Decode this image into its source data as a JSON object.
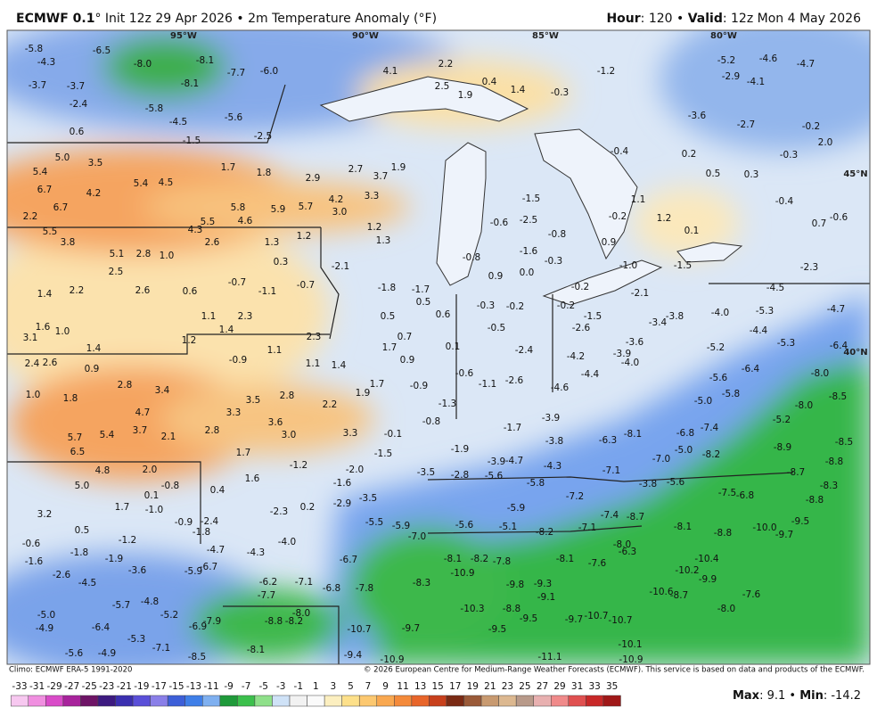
{
  "header": {
    "model": "ECMWF 0.1",
    "title": "° Init 12z 29 Apr 2026 • 2m Temperature Anomaly (°F)",
    "hour_key": "Hour",
    "hour_value": ": 120 • ",
    "valid_key": "Valid",
    "valid_value": ": 12z Mon 4 May 2026"
  },
  "map": {
    "graticule": [
      "95°W",
      "90°W",
      "85°W",
      "80°W",
      "45°N",
      "40°N"
    ],
    "values": [
      "-5.8",
      "-4.3",
      "-3.7",
      "-3.7",
      "-2.4",
      "0.6",
      "-6.5",
      "-8.0",
      "-8.1",
      "-8.1",
      "-7.7",
      "-6.0",
      "-5.8",
      "-4.5",
      "-5.6",
      "-2.5",
      "-1.5",
      "5.0",
      "3.5",
      "5.4",
      "6.7",
      "4.2",
      "6.7",
      "5.4",
      "4.5",
      "1.7",
      "1.8",
      "2.9",
      "2.7",
      "3.7",
      "1.9",
      "5.8",
      "5.9",
      "5.7",
      "4.2",
      "3.0",
      "3.3",
      "4.6",
      "5.5",
      "4.3",
      "2.6",
      "1.3",
      "1.2",
      "1.2",
      "1.3",
      "2.2",
      "5.5",
      "3.8",
      "5.1",
      "2.8",
      "1.0",
      "2.5",
      "0.3",
      "2.2",
      "1.4",
      "2.6",
      "0.6",
      "-0.7",
      "-1.1",
      "-0.7",
      "-2.1",
      "4.1",
      "2.2",
      "2.5",
      "1.9",
      "0.4",
      "1.4",
      "-0.3",
      "-1.2",
      "-5.2",
      "-4.6",
      "-4.7",
      "-2.9",
      "-4.1",
      "-3.6",
      "-2.7",
      "-0.2",
      "2.0",
      "-0.3",
      "0.5",
      "0.3",
      "0.2",
      "-0.4",
      "1.1",
      "1.2",
      "0.1",
      "-1.5",
      "-0.4",
      "0.7",
      "-0.6",
      "-2.3",
      "-4.5",
      "-4.0",
      "-5.3",
      "-4.7",
      "-4.4",
      "-5.3",
      "-6.4",
      "-5.2",
      "-3.4",
      "-3.8",
      "-3.6",
      "-3.9",
      "-4.0",
      "-4.2",
      "-4.4",
      "-2.4",
      "-2.6",
      "-1.1",
      "-0.6",
      "0.1",
      "-0.5",
      "-0.3",
      "-0.2",
      "-0.2",
      "-0.2",
      "-1.5",
      "-2.6",
      "-1.6",
      "-0.8",
      "0.9",
      "0.0",
      "-0.3",
      "-0.6",
      "-2.5",
      "-1.5",
      "-0.8",
      "0.9",
      "-0.2",
      "-1.0",
      "-2.1",
      "-1.8",
      "-1.7",
      "0.5",
      "0.6",
      "0.5",
      "0.7",
      "1.7",
      "0.9",
      "1.7",
      "1.9",
      "-0.9",
      "1.1",
      "1.4",
      "2.3",
      "1.1",
      "1.1",
      "2.3",
      "1.4",
      "1.2",
      "-0.9",
      "3.5",
      "2.8",
      "2.2",
      "3.3",
      "3.6",
      "3.0",
      "3.3",
      "1.7",
      "3.4",
      "2.8",
      "4.7",
      "3.7",
      "2.1",
      "2.8",
      "5.4",
      "5.7",
      "6.5",
      "4.8",
      "2.0",
      "5.0",
      "1.8",
      "1.0",
      "2.4",
      "2.6",
      "0.9",
      "1.4",
      "3.1",
      "1.6",
      "1.0",
      "-1.2",
      "-2.0",
      "1.6",
      "0.4",
      "-1.6",
      "-2.9",
      "-2.3",
      "0.2",
      "-0.8",
      "0.1",
      "-1.0",
      "1.7",
      "3.2",
      "0.5",
      "-0.9",
      "-2.4",
      "-1.8",
      "-1.2",
      "-0.6",
      "-1.8",
      "-1.6",
      "-1.9",
      "-4.0",
      "-4.3",
      "-4.7",
      "-5.9",
      "-7.0",
      "-5.6",
      "-5.1",
      "-8.2",
      "-7.1",
      "-8.1",
      "-8.8",
      "-10.0",
      "-9.7",
      "-7.5",
      "-6.8",
      "-9.5",
      "-8.8",
      "-8.3",
      "-8.7",
      "-8.8",
      "-8.9",
      "-8.5",
      "-8.0",
      "-8.5",
      "-8.0",
      "-6.4",
      "-5.6",
      "-5.8",
      "-5.0",
      "-5.2",
      "-7.4",
      "-6.8",
      "-8.2",
      "-7.0",
      "-5.0",
      "-8.1",
      "-6.3",
      "-3.9",
      "-3.8",
      "-4.3",
      "-3.9",
      "-4.7",
      "-5.6",
      "-2.8",
      "-3.5",
      "-1.9",
      "-1.5",
      "-0.1",
      "-0.8",
      "-1.3",
      "-1.7",
      "-4.6",
      "-5.8",
      "-7.1",
      "-7.2",
      "-5.9",
      "-3.8",
      "-5.6",
      "-7.4",
      "-8.7",
      "-10.2",
      "-10.4",
      "-9.9",
      "-7.6",
      "-8.0",
      "-6.3",
      "-8.0",
      "-7.6",
      "-8.1",
      "-8.1",
      "-8.2",
      "-7.8",
      "-10.9",
      "-8.3",
      "-9.8",
      "-9.3",
      "-9.1",
      "-10.3",
      "-8.8",
      "-9.5",
      "-9.7",
      "-10.7",
      "-10.7",
      "-10.6",
      "-8.7",
      "-9.5",
      "-11.1",
      "-10.9",
      "-10.1",
      "-9.7",
      "-10.7",
      "-7.8",
      "-6.8",
      "-6.7",
      "-5.5",
      "-3.5",
      "-6.2",
      "-7.1",
      "-7.7",
      "-8.8",
      "-8.2",
      "-8.0",
      "-6.9",
      "-7.9",
      "-8.1",
      "-8.5",
      "-7.1",
      "-5.3",
      "-6.4",
      "-5.2",
      "-4.8",
      "-5.7",
      "-4.5",
      "-2.6",
      "-3.6",
      "-5.0",
      "-4.9",
      "-5.6",
      "-4.9",
      "-10.9",
      "-9.4",
      "-5.9",
      "-6.7"
    ]
  },
  "footer": {
    "climo": "Climo: ECMWF ERA-5 1991-2020",
    "copyright": "© 2026 European Centre for Medium-Range Weather Forecasts (ECMWF). This service is based on data and products of the ECMWF.",
    "max_key": "Max",
    "max_value": ": 9.1 • ",
    "min_key": "Min",
    "min_value": ": -14.2"
  },
  "colorbar": {
    "labels": [
      -33,
      -31,
      -29,
      -27,
      -25,
      -23,
      -21,
      -19,
      -17,
      -15,
      -13,
      -11,
      -9,
      -7,
      -5,
      -3,
      -1,
      1,
      3,
      5,
      7,
      9,
      11,
      13,
      15,
      17,
      19,
      21,
      23,
      25,
      27,
      29,
      31,
      33,
      35
    ],
    "colors": [
      "#f7c8f0",
      "#f08fe0",
      "#d94bc8",
      "#a8239c",
      "#6e1466",
      "#3d1a80",
      "#3b2fb0",
      "#5a4fd8",
      "#8a7fe8",
      "#3d5fd8",
      "#3f7fe8",
      "#7fb0f0",
      "#1f9a3a",
      "#3cc04c",
      "#8fe08a",
      "#cfe2f7",
      "#f2f2f2",
      "#fafafa",
      "#fcefc0",
      "#fde08a",
      "#fcc870",
      "#f9a850",
      "#f48a3a",
      "#e8652a",
      "#c8401c",
      "#7a2a14",
      "#9a5a38",
      "#c89a70",
      "#dcb890",
      "#b89a8a",
      "#e8b0b0",
      "#f08a8a",
      "#e05050",
      "#c82828",
      "#a01818"
    ]
  }
}
